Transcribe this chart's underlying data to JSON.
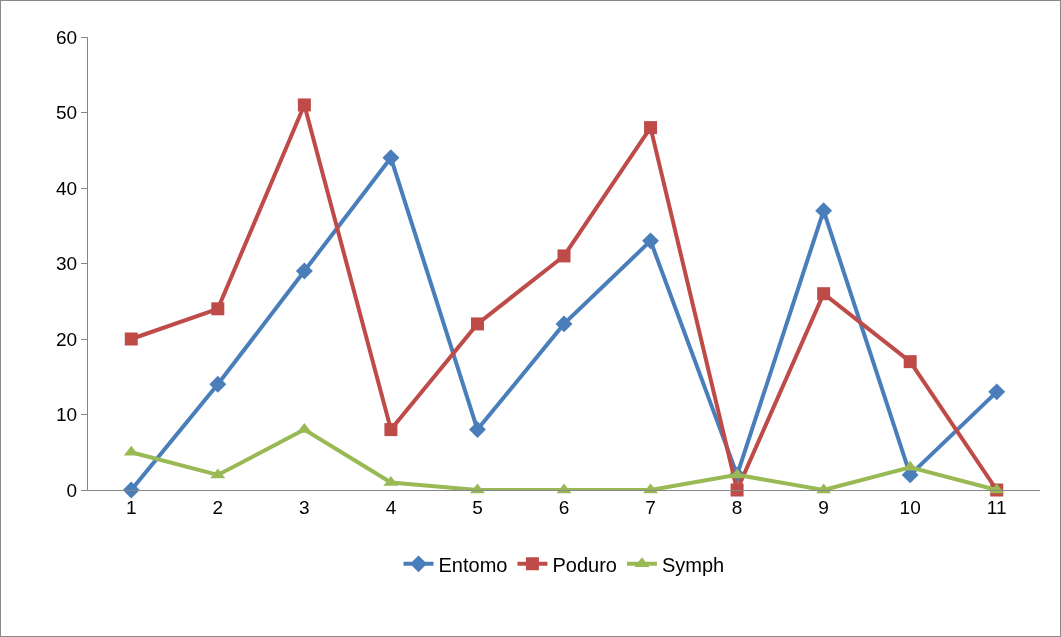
{
  "chart_data": {
    "type": "line",
    "categories": [
      "1",
      "2",
      "3",
      "4",
      "5",
      "6",
      "7",
      "8",
      "9",
      "10",
      "11"
    ],
    "series": [
      {
        "name": "Entomo",
        "color": "#4a7ebb",
        "marker": "diamond",
        "values": [
          0,
          14,
          29,
          44,
          8,
          22,
          33,
          2,
          37,
          2,
          13
        ]
      },
      {
        "name": "Poduro",
        "color": "#be4b48",
        "marker": "square",
        "values": [
          20,
          24,
          51,
          8,
          22,
          31,
          48,
          0,
          26,
          17,
          0
        ]
      },
      {
        "name": "Symph",
        "color": "#98b954",
        "marker": "triangle",
        "values": [
          5,
          2,
          8,
          1,
          0,
          0,
          0,
          2,
          0,
          3,
          0
        ]
      }
    ],
    "ylim": [
      0,
      60
    ],
    "yticks": [
      0,
      10,
      20,
      30,
      40,
      50,
      60
    ],
    "grid": false,
    "legend": "bottom",
    "line_style": "solid"
  }
}
